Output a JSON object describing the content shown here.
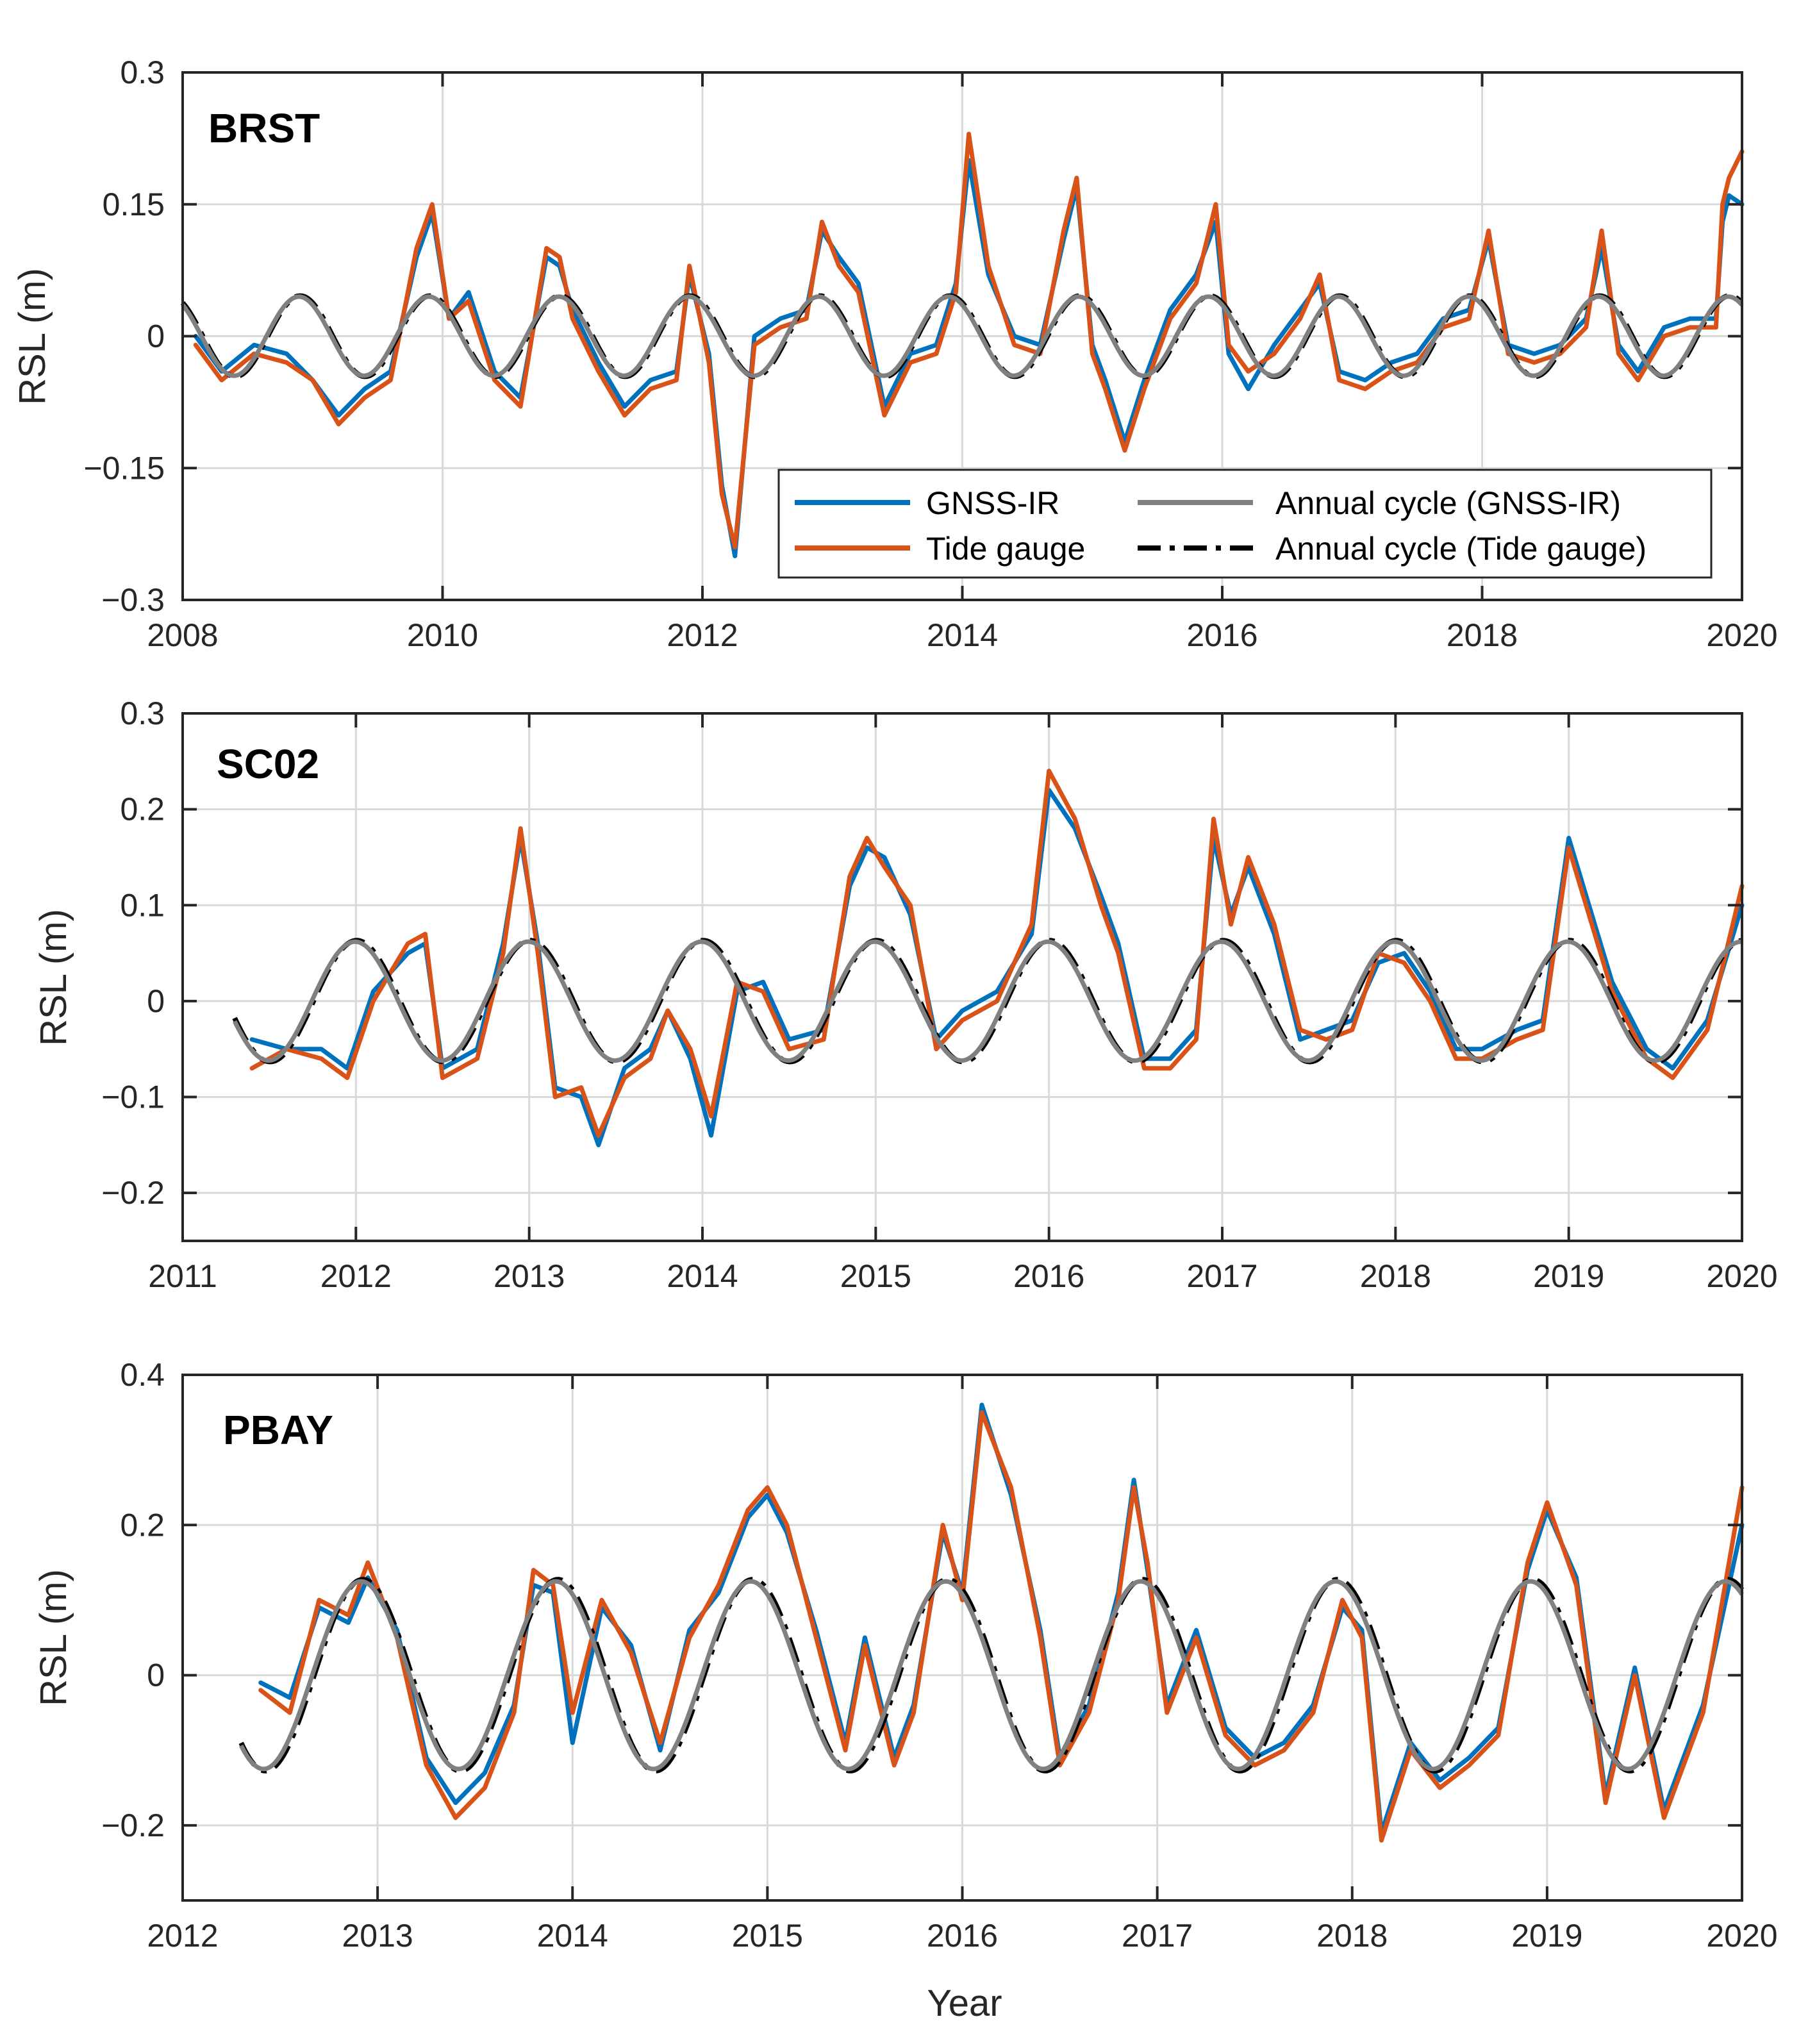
{
  "colors": {
    "gnss": "#0072bd",
    "tide": "#d95319",
    "annual_gnss": "#808080",
    "annual_tide": "#000000"
  },
  "legend": {
    "gnss": "GNSS-IR",
    "tide": "Tide gauge",
    "annual_gnss": "Annual cycle (GNSS-IR)",
    "annual_tide": "Annual cycle (Tide gauge)"
  },
  "chart_data": [
    {
      "type": "line",
      "title": "BRST",
      "xlabel": "",
      "ylabel": "RSL (m)",
      "xlim": [
        2008,
        2020
      ],
      "ylim": [
        -0.3,
        0.3
      ],
      "xticks": [
        2008,
        2010,
        2012,
        2014,
        2016,
        2018,
        2020
      ],
      "xtick_labels": [
        "2008",
        "2010",
        "2012",
        "2014",
        "2016",
        "2018",
        "2020"
      ],
      "yticks": [
        -0.3,
        -0.15,
        0,
        0.15,
        0.3
      ],
      "ytick_labels": [
        "−0.3",
        "−0.15",
        "0",
        "0.15",
        "0.3"
      ],
      "legend_position": "bottom-right",
      "annual": {
        "amplitude": 0.045,
        "peak_phase": 0.9,
        "start": 2008.0,
        "end": 2020.0
      },
      "series": [
        {
          "name": "Tide gauge",
          "x": [
            2008.1,
            2008.3,
            2008.55,
            2008.8,
            2009.0,
            2009.2,
            2009.4,
            2009.6,
            2009.8,
            2009.92,
            2010.05,
            2010.2,
            2010.4,
            2010.6,
            2010.8,
            2010.9,
            2011.0,
            2011.2,
            2011.4,
            2011.6,
            2011.8,
            2011.9,
            2012.05,
            2012.15,
            2012.25,
            2012.4,
            2012.6,
            2012.8,
            2012.92,
            2013.05,
            2013.2,
            2013.4,
            2013.6,
            2013.8,
            2013.95,
            2014.05,
            2014.2,
            2014.4,
            2014.6,
            2014.78,
            2014.88,
            2015.0,
            2015.1,
            2015.25,
            2015.4,
            2015.6,
            2015.8,
            2015.95,
            2016.05,
            2016.2,
            2016.4,
            2016.6,
            2016.75,
            2016.9,
            2017.1,
            2017.3,
            2017.5,
            2017.7,
            2017.9,
            2018.05,
            2018.2,
            2018.4,
            2018.6,
            2018.8,
            2018.92,
            2019.05,
            2019.2,
            2019.4,
            2019.6,
            2019.8,
            2019.85,
            2019.9,
            2020.0
          ],
          "values": [
            -0.01,
            -0.05,
            -0.02,
            -0.03,
            -0.05,
            -0.1,
            -0.07,
            -0.05,
            0.1,
            0.15,
            0.02,
            0.04,
            -0.05,
            -0.08,
            0.1,
            0.09,
            0.02,
            -0.04,
            -0.09,
            -0.06,
            -0.05,
            0.08,
            -0.03,
            -0.18,
            -0.24,
            -0.01,
            0.01,
            0.02,
            0.13,
            0.08,
            0.05,
            -0.09,
            -0.03,
            -0.02,
            0.05,
            0.23,
            0.08,
            -0.01,
            -0.02,
            0.12,
            0.18,
            -0.02,
            -0.06,
            -0.13,
            -0.06,
            0.02,
            0.06,
            0.15,
            -0.01,
            -0.04,
            -0.02,
            0.02,
            0.07,
            -0.05,
            -0.06,
            -0.04,
            -0.03,
            0.01,
            0.02,
            0.12,
            -0.02,
            -0.03,
            -0.02,
            0.01,
            0.12,
            -0.02,
            -0.05,
            0.0,
            0.01,
            0.01,
            0.15,
            0.18,
            0.21
          ]
        },
        {
          "name": "GNSS-IR",
          "x": [
            2008.1,
            2008.3,
            2008.55,
            2008.8,
            2009.0,
            2009.2,
            2009.4,
            2009.6,
            2009.8,
            2009.92,
            2010.05,
            2010.2,
            2010.4,
            2010.6,
            2010.8,
            2010.9,
            2011.0,
            2011.2,
            2011.4,
            2011.6,
            2011.8,
            2011.9,
            2012.05,
            2012.15,
            2012.25,
            2012.4,
            2012.6,
            2012.8,
            2012.92,
            2013.05,
            2013.2,
            2013.4,
            2013.6,
            2013.8,
            2013.95,
            2014.05,
            2014.2,
            2014.4,
            2014.6,
            2014.78,
            2014.88,
            2015.0,
            2015.1,
            2015.25,
            2015.4,
            2015.6,
            2015.8,
            2015.95,
            2016.05,
            2016.2,
            2016.4,
            2016.6,
            2016.75,
            2016.9,
            2017.1,
            2017.3,
            2017.5,
            2017.7,
            2017.9,
            2018.05,
            2018.2,
            2018.4,
            2018.6,
            2018.8,
            2018.92,
            2019.05,
            2019.2,
            2019.4,
            2019.6,
            2019.8,
            2019.85,
            2019.9,
            2020.0
          ],
          "values": [
            0.0,
            -0.04,
            -0.01,
            -0.02,
            -0.05,
            -0.09,
            -0.06,
            -0.04,
            0.09,
            0.14,
            0.02,
            0.05,
            -0.04,
            -0.07,
            0.09,
            0.08,
            0.03,
            -0.03,
            -0.08,
            -0.05,
            -0.04,
            0.07,
            -0.02,
            -0.17,
            -0.25,
            0.0,
            0.02,
            0.03,
            0.12,
            0.09,
            0.06,
            -0.08,
            -0.02,
            -0.01,
            0.06,
            0.2,
            0.07,
            0.0,
            -0.01,
            0.11,
            0.17,
            -0.01,
            -0.05,
            -0.12,
            -0.05,
            0.03,
            0.07,
            0.13,
            -0.02,
            -0.06,
            -0.01,
            0.03,
            0.06,
            -0.04,
            -0.05,
            -0.03,
            -0.02,
            0.02,
            0.03,
            0.11,
            -0.01,
            -0.02,
            -0.01,
            0.02,
            0.1,
            -0.01,
            -0.04,
            0.01,
            0.02,
            0.02,
            0.13,
            0.16,
            0.15
          ]
        }
      ]
    },
    {
      "type": "line",
      "title": "SC02",
      "xlabel": "",
      "ylabel": "RSL (m)",
      "xlim": [
        2011,
        2020
      ],
      "ylim": [
        -0.25,
        0.3
      ],
      "xticks": [
        2011,
        2012,
        2013,
        2014,
        2015,
        2016,
        2017,
        2018,
        2019,
        2020
      ],
      "xtick_labels": [
        "2011",
        "2012",
        "2013",
        "2014",
        "2015",
        "2016",
        "2017",
        "2018",
        "2019",
        "2020"
      ],
      "yticks": [
        -0.2,
        -0.1,
        0,
        0.1,
        0.2,
        0.3
      ],
      "ytick_labels": [
        "−0.2",
        "−0.1",
        "0",
        "0.1",
        "0.2",
        "0.3"
      ],
      "legend_position": "none",
      "annual": {
        "amplitude": 0.062,
        "peak_phase": 0.0,
        "start": 2011.3,
        "end": 2020.0
      },
      "series": [
        {
          "name": "Tide gauge",
          "x": [
            2011.4,
            2011.6,
            2011.8,
            2011.95,
            2012.1,
            2012.3,
            2012.4,
            2012.5,
            2012.7,
            2012.85,
            2012.95,
            2013.05,
            2013.15,
            2013.3,
            2013.4,
            2013.55,
            2013.7,
            2013.8,
            2013.93,
            2014.05,
            2014.2,
            2014.35,
            2014.5,
            2014.7,
            2014.85,
            2014.95,
            2015.05,
            2015.2,
            2015.35,
            2015.5,
            2015.7,
            2015.9,
            2016.0,
            2016.15,
            2016.3,
            2016.4,
            2016.55,
            2016.7,
            2016.85,
            2016.95,
            2017.05,
            2017.15,
            2017.3,
            2017.45,
            2017.6,
            2017.75,
            2017.9,
            2018.05,
            2018.2,
            2018.35,
            2018.5,
            2018.7,
            2018.85,
            2019.0,
            2019.1,
            2019.25,
            2019.45,
            2019.6,
            2019.8,
            2020.0
          ],
          "values": [
            -0.07,
            -0.05,
            -0.06,
            -0.08,
            0.0,
            0.06,
            0.07,
            -0.08,
            -0.06,
            0.05,
            0.18,
            0.05,
            -0.1,
            -0.09,
            -0.14,
            -0.08,
            -0.06,
            -0.01,
            -0.05,
            -0.12,
            0.02,
            0.01,
            -0.05,
            -0.04,
            0.13,
            0.17,
            0.14,
            0.1,
            -0.05,
            -0.02,
            0.0,
            0.08,
            0.24,
            0.19,
            0.1,
            0.05,
            -0.07,
            -0.07,
            -0.04,
            0.19,
            0.08,
            0.15,
            0.08,
            -0.03,
            -0.04,
            -0.03,
            0.05,
            0.04,
            0.0,
            -0.06,
            -0.06,
            -0.04,
            -0.03,
            0.16,
            0.1,
            0.01,
            -0.06,
            -0.08,
            -0.03,
            0.12
          ]
        },
        {
          "name": "GNSS-IR",
          "x": [
            2011.4,
            2011.6,
            2011.8,
            2011.95,
            2012.1,
            2012.3,
            2012.4,
            2012.5,
            2012.7,
            2012.85,
            2012.95,
            2013.05,
            2013.15,
            2013.3,
            2013.4,
            2013.55,
            2013.7,
            2013.8,
            2013.93,
            2014.05,
            2014.2,
            2014.35,
            2014.5,
            2014.7,
            2014.85,
            2014.95,
            2015.05,
            2015.2,
            2015.35,
            2015.5,
            2015.7,
            2015.9,
            2016.0,
            2016.15,
            2016.3,
            2016.4,
            2016.55,
            2016.7,
            2016.85,
            2016.95,
            2017.05,
            2017.15,
            2017.3,
            2017.45,
            2017.6,
            2017.75,
            2017.9,
            2018.05,
            2018.2,
            2018.35,
            2018.5,
            2018.7,
            2018.85,
            2019.0,
            2019.1,
            2019.25,
            2019.45,
            2019.6,
            2019.8,
            2020.0
          ],
          "values": [
            -0.04,
            -0.05,
            -0.05,
            -0.07,
            0.01,
            0.05,
            0.06,
            -0.07,
            -0.05,
            0.06,
            0.17,
            0.06,
            -0.09,
            -0.1,
            -0.15,
            -0.07,
            -0.05,
            -0.01,
            -0.06,
            -0.14,
            0.01,
            0.02,
            -0.04,
            -0.03,
            0.12,
            0.16,
            0.15,
            0.09,
            -0.04,
            -0.01,
            0.01,
            0.07,
            0.22,
            0.18,
            0.11,
            0.06,
            -0.06,
            -0.06,
            -0.03,
            0.17,
            0.09,
            0.14,
            0.07,
            -0.04,
            -0.03,
            -0.02,
            0.04,
            0.05,
            0.01,
            -0.05,
            -0.05,
            -0.03,
            -0.02,
            0.17,
            0.11,
            0.02,
            -0.05,
            -0.07,
            -0.02,
            0.1
          ]
        }
      ]
    },
    {
      "type": "line",
      "title": "PBAY",
      "xlabel": "Year",
      "ylabel": "RSL (m)",
      "xlim": [
        2012,
        2020
      ],
      "ylim": [
        -0.3,
        0.4
      ],
      "xticks": [
        2012,
        2013,
        2014,
        2015,
        2016,
        2017,
        2018,
        2019,
        2020
      ],
      "xtick_labels": [
        "2012",
        "2013",
        "2014",
        "2015",
        "2016",
        "2017",
        "2018",
        "2019",
        "2020"
      ],
      "yticks": [
        -0.2,
        0,
        0.2,
        0.4
      ],
      "ytick_labels": [
        "−0.2",
        "0",
        "0.2",
        "0.4"
      ],
      "legend_position": "none",
      "annual": {
        "amplitude": 0.125,
        "peak_phase": 0.92,
        "start": 2012.3,
        "end": 2020.0
      },
      "series": [
        {
          "name": "Tide gauge",
          "x": [
            2012.4,
            2012.55,
            2012.7,
            2012.85,
            2012.95,
            2013.1,
            2013.25,
            2013.4,
            2013.55,
            2013.7,
            2013.8,
            2013.9,
            2014.0,
            2014.15,
            2014.3,
            2014.45,
            2014.6,
            2014.75,
            2014.9,
            2015.0,
            2015.1,
            2015.25,
            2015.4,
            2015.5,
            2015.65,
            2015.75,
            2015.9,
            2016.0,
            2016.1,
            2016.25,
            2016.4,
            2016.5,
            2016.65,
            2016.8,
            2016.88,
            2016.95,
            2017.05,
            2017.2,
            2017.35,
            2017.5,
            2017.65,
            2017.8,
            2017.95,
            2018.05,
            2018.15,
            2018.3,
            2018.45,
            2018.6,
            2018.75,
            2018.9,
            2019.0,
            2019.15,
            2019.3,
            2019.45,
            2019.6,
            2019.8,
            2020.0
          ],
          "values": [
            -0.02,
            -0.05,
            0.1,
            0.08,
            0.15,
            0.05,
            -0.12,
            -0.19,
            -0.15,
            -0.05,
            0.14,
            0.12,
            -0.05,
            0.1,
            0.03,
            -0.09,
            0.05,
            0.12,
            0.22,
            0.25,
            0.2,
            0.05,
            -0.1,
            0.04,
            -0.12,
            -0.05,
            0.2,
            0.1,
            0.35,
            0.25,
            0.05,
            -0.12,
            -0.05,
            0.1,
            0.25,
            0.15,
            -0.05,
            0.05,
            -0.08,
            -0.12,
            -0.1,
            -0.05,
            0.1,
            0.05,
            -0.22,
            -0.1,
            -0.15,
            -0.12,
            -0.08,
            0.15,
            0.23,
            0.12,
            -0.17,
            0.0,
            -0.19,
            -0.05,
            0.25
          ]
        },
        {
          "name": "GNSS-IR",
          "x": [
            2012.4,
            2012.55,
            2012.7,
            2012.85,
            2012.95,
            2013.1,
            2013.25,
            2013.4,
            2013.55,
            2013.7,
            2013.8,
            2013.9,
            2014.0,
            2014.15,
            2014.3,
            2014.45,
            2014.6,
            2014.75,
            2014.9,
            2015.0,
            2015.1,
            2015.25,
            2015.4,
            2015.5,
            2015.65,
            2015.75,
            2015.9,
            2016.0,
            2016.1,
            2016.25,
            2016.4,
            2016.5,
            2016.65,
            2016.8,
            2016.88,
            2016.95,
            2017.05,
            2017.2,
            2017.35,
            2017.5,
            2017.65,
            2017.8,
            2017.95,
            2018.05,
            2018.15,
            2018.3,
            2018.45,
            2018.6,
            2018.75,
            2018.9,
            2019.0,
            2019.15,
            2019.3,
            2019.45,
            2019.6,
            2019.8,
            2020.0
          ],
          "values": [
            -0.01,
            -0.03,
            0.09,
            0.07,
            0.13,
            0.06,
            -0.11,
            -0.17,
            -0.13,
            -0.04,
            0.12,
            0.11,
            -0.09,
            0.09,
            0.04,
            -0.1,
            0.06,
            0.11,
            0.21,
            0.24,
            0.19,
            0.06,
            -0.09,
            0.05,
            -0.11,
            -0.04,
            0.19,
            0.11,
            0.36,
            0.24,
            0.06,
            -0.11,
            -0.04,
            0.11,
            0.26,
            0.14,
            -0.04,
            0.06,
            -0.07,
            -0.11,
            -0.09,
            -0.04,
            0.09,
            0.06,
            -0.21,
            -0.09,
            -0.14,
            -0.11,
            -0.07,
            0.14,
            0.22,
            0.13,
            -0.16,
            0.01,
            -0.18,
            -0.04,
            0.2
          ]
        }
      ]
    }
  ]
}
